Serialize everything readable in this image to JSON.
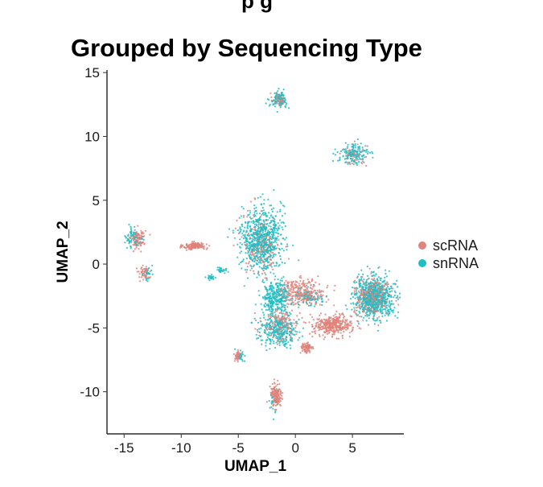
{
  "chart_data": {
    "type": "scatter",
    "title": "Grouped by Sequencing Type",
    "partial_title_above": "p g",
    "xlabel": "UMAP_1",
    "ylabel": "UMAP_2",
    "xlim": [
      -16.5,
      9.5
    ],
    "ylim": [
      -13.3,
      15.2
    ],
    "x_ticks": [
      -15,
      -10,
      -5,
      0,
      5
    ],
    "x_tick_labels": [
      "-15",
      "-10",
      "-5",
      "0",
      "5"
    ],
    "y_ticks": [
      -10,
      -5,
      0,
      5,
      10,
      15
    ],
    "y_tick_labels": [
      "-10",
      "-5",
      "0",
      "5",
      "10",
      "15"
    ],
    "grid": false,
    "legend_position": "right",
    "series": [
      {
        "name": "scRNA",
        "color": "#E0837A",
        "clusters": [
          {
            "center": [
              -1.5,
              12.9
            ],
            "spread": [
              0.5,
              0.45
            ],
            "share": 0.02
          },
          {
            "center": [
              5.2,
              8.5
            ],
            "spread": [
              1.0,
              0.8
            ],
            "share": 0.02
          },
          {
            "center": [
              -13.8,
              2.0
            ],
            "spread": [
              0.6,
              0.7
            ],
            "share": 0.04
          },
          {
            "center": [
              -8.8,
              1.4
            ],
            "spread": [
              0.9,
              0.25
            ],
            "share": 0.06
          },
          {
            "center": [
              -3.0,
              1.5
            ],
            "spread": [
              1.5,
              2.2
            ],
            "share": 0.07
          },
          {
            "center": [
              0.6,
              -2.2
            ],
            "spread": [
              1.8,
              0.9
            ],
            "share": 0.11
          },
          {
            "center": [
              3.3,
              -4.8
            ],
            "spread": [
              1.5,
              0.7
            ],
            "share": 0.14
          },
          {
            "center": [
              6.8,
              -2.6
            ],
            "spread": [
              1.5,
              1.3
            ],
            "share": 0.12
          },
          {
            "center": [
              -1.3,
              -4.8
            ],
            "spread": [
              1.5,
              1.1
            ],
            "share": 0.06
          },
          {
            "center": [
              -1.7,
              -10.3
            ],
            "spread": [
              0.45,
              0.9
            ],
            "share": 0.06
          },
          {
            "center": [
              1.0,
              -6.6
            ],
            "spread": [
              0.5,
              0.4
            ],
            "share": 0.03
          },
          {
            "center": [
              -5.0,
              -7.2
            ],
            "spread": [
              0.3,
              0.4
            ],
            "share": 0.02
          },
          {
            "center": [
              -13.3,
              -0.7
            ],
            "spread": [
              0.4,
              0.5
            ],
            "share": 0.02
          }
        ]
      },
      {
        "name": "snRNA",
        "color": "#1FBDC4",
        "clusters": [
          {
            "center": [
              -1.4,
              12.9
            ],
            "spread": [
              0.7,
              0.55
            ],
            "share": 0.04
          },
          {
            "center": [
              5.1,
              8.6
            ],
            "spread": [
              1.3,
              0.75
            ],
            "share": 0.06
          },
          {
            "center": [
              -14.1,
              2.1
            ],
            "spread": [
              0.65,
              0.7
            ],
            "share": 0.03
          },
          {
            "center": [
              -12.9,
              -0.8
            ],
            "spread": [
              0.35,
              0.45
            ],
            "share": 0.01
          },
          {
            "center": [
              -3.0,
              2.0
            ],
            "spread": [
              1.6,
              2.3
            ],
            "share": 0.28
          },
          {
            "center": [
              -1.7,
              -2.6
            ],
            "spread": [
              1.1,
              1.1
            ],
            "share": 0.12
          },
          {
            "center": [
              -1.5,
              -5.1
            ],
            "spread": [
              1.5,
              1.1
            ],
            "share": 0.12
          },
          {
            "center": [
              6.9,
              -2.6
            ],
            "spread": [
              1.6,
              1.4
            ],
            "share": 0.27
          },
          {
            "center": [
              1.2,
              -2.6
            ],
            "spread": [
              1.2,
              0.6
            ],
            "share": 0.03
          },
          {
            "center": [
              -4.8,
              -7.2
            ],
            "spread": [
              0.3,
              0.4
            ],
            "share": 0.01
          },
          {
            "center": [
              -1.9,
              -10.7
            ],
            "spread": [
              0.35,
              0.9
            ],
            "share": 0.01
          },
          {
            "center": [
              -6.4,
              -0.5
            ],
            "spread": [
              0.4,
              0.25
            ],
            "share": 0.01
          },
          {
            "center": [
              -7.4,
              -1.1
            ],
            "spread": [
              0.3,
              0.2
            ],
            "share": 0.01
          }
        ]
      }
    ]
  }
}
